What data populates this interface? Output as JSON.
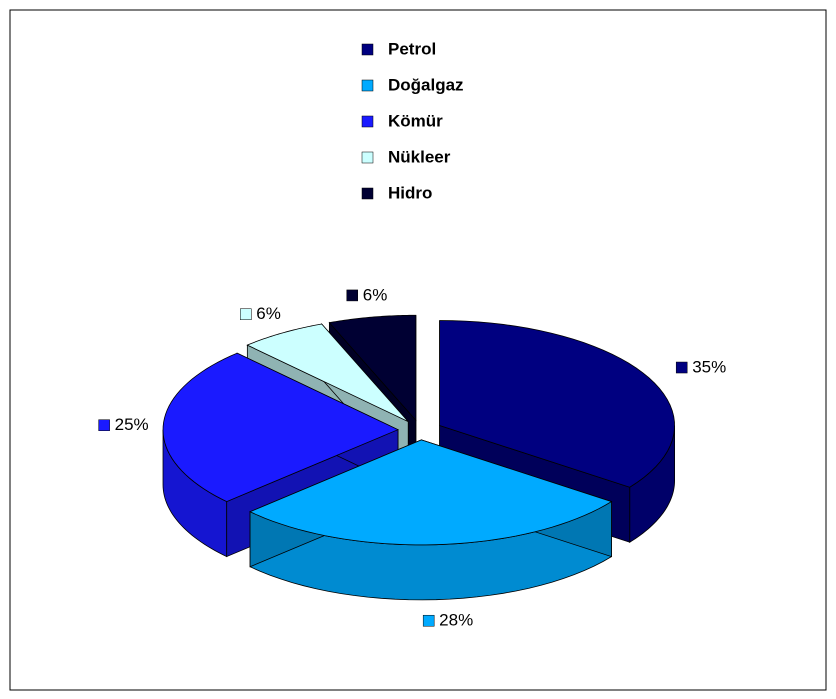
{
  "chart_data": {
    "type": "pie",
    "categories": [
      "Petrol",
      "Doğalgaz",
      "Kömür",
      "Nükleer",
      "Hidro"
    ],
    "values": [
      35,
      28,
      25,
      6,
      6
    ],
    "value_labels": [
      "35%",
      "28%",
      "25%",
      "6%",
      "6%"
    ],
    "colors": [
      "#000080",
      "#00aaff",
      "#1a1aff",
      "#ccffff",
      "#000033"
    ],
    "legend": "top"
  }
}
